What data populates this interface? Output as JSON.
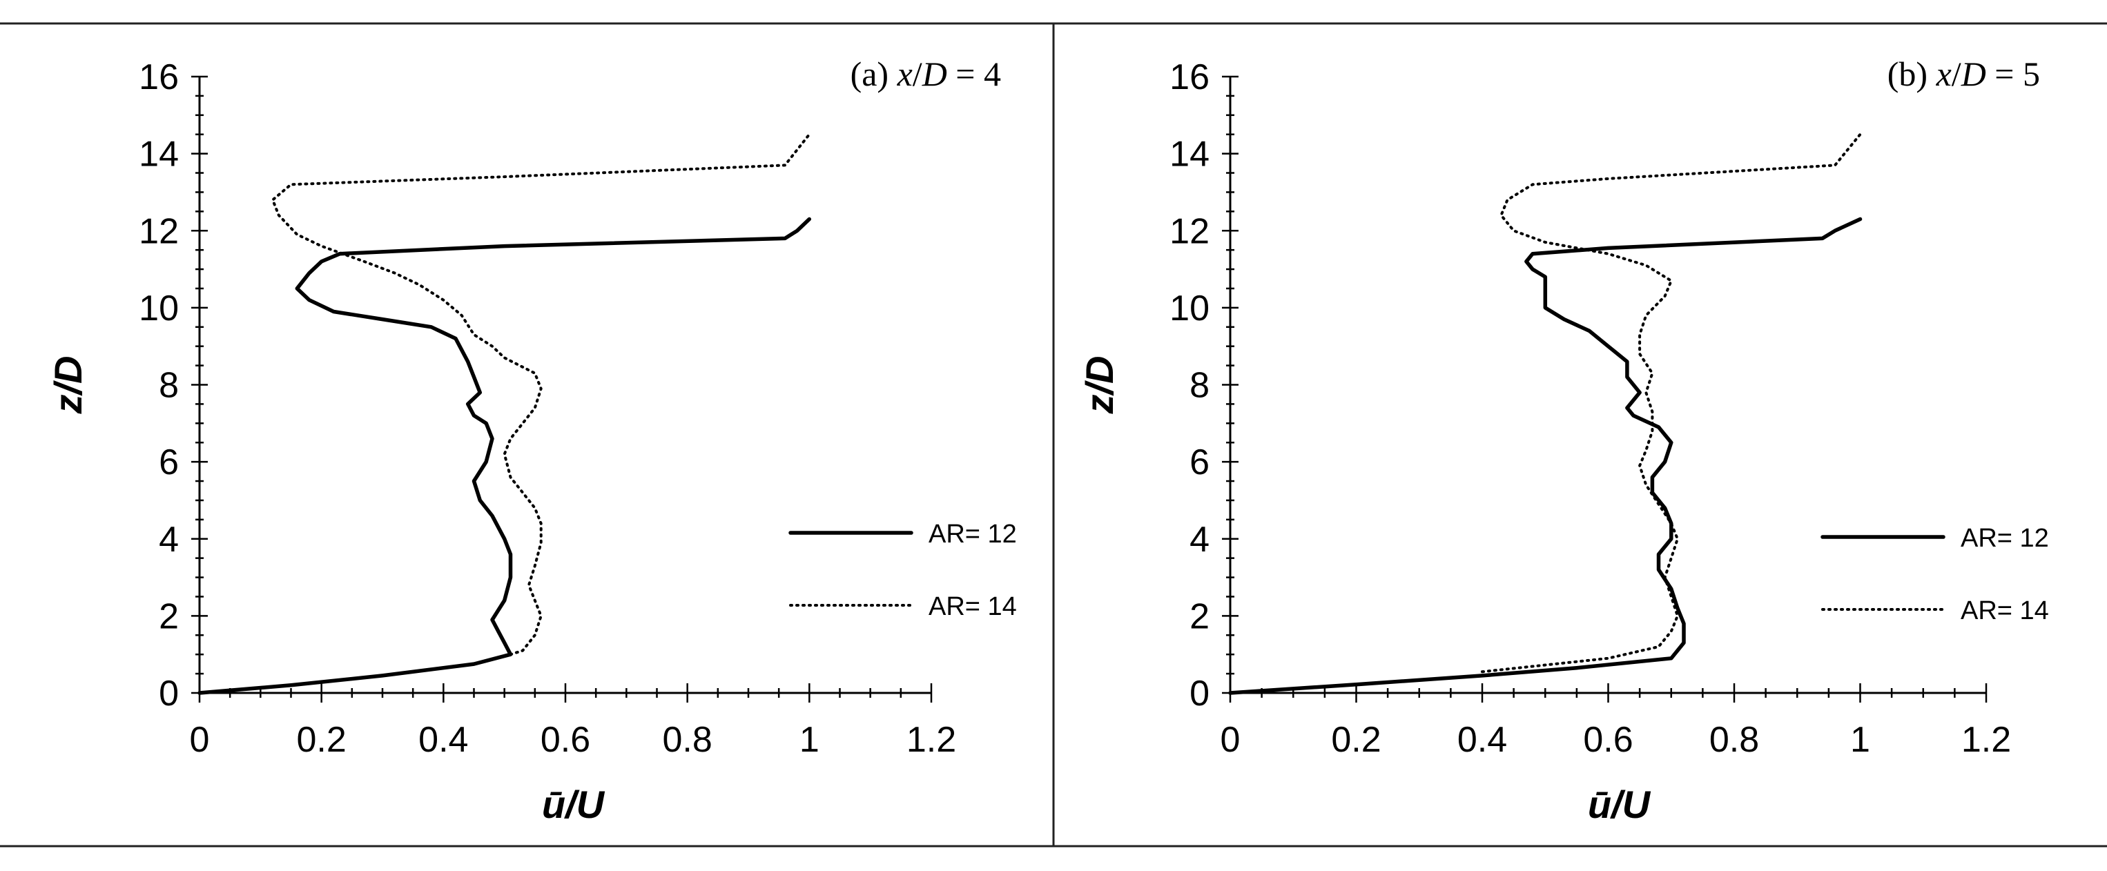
{
  "chart_data": [
    {
      "type": "line",
      "title": "(a) x/D = 4",
      "title_parts": {
        "prefix": "(a) ",
        "var1": "x",
        "sep": "/",
        "var2": "D",
        "suffix": " = 4"
      },
      "xlabel": "ū/U",
      "ylabel": "z/D",
      "xlim": [
        0,
        1.2
      ],
      "ylim": [
        0,
        16
      ],
      "xticks": [
        0,
        0.2,
        0.4,
        0.6,
        0.8,
        1,
        1.2
      ],
      "xtick_labels": [
        "0",
        "0.2",
        "0.4",
        "0.6",
        "0.8",
        "1",
        "1.2"
      ],
      "yticks": [
        0,
        2,
        4,
        6,
        8,
        10,
        12,
        14,
        16
      ],
      "ytick_labels": [
        "0",
        "2",
        "4",
        "6",
        "8",
        "10",
        "12",
        "14",
        "16"
      ],
      "grid": false,
      "legend_position": "right",
      "series": [
        {
          "name": "AR= 12",
          "style": "solid",
          "points": [
            [
              0,
              0
            ],
            [
              0.15,
              0.2
            ],
            [
              0.3,
              0.45
            ],
            [
              0.45,
              0.75
            ],
            [
              0.51,
              1.0
            ],
            [
              0.5,
              1.3
            ],
            [
              0.49,
              1.6
            ],
            [
              0.48,
              1.9
            ],
            [
              0.5,
              2.4
            ],
            [
              0.51,
              3.0
            ],
            [
              0.51,
              3.6
            ],
            [
              0.5,
              4.0
            ],
            [
              0.48,
              4.6
            ],
            [
              0.46,
              5.0
            ],
            [
              0.45,
              5.5
            ],
            [
              0.47,
              6.0
            ],
            [
              0.48,
              6.6
            ],
            [
              0.47,
              7.0
            ],
            [
              0.45,
              7.2
            ],
            [
              0.44,
              7.5
            ],
            [
              0.46,
              7.8
            ],
            [
              0.45,
              8.2
            ],
            [
              0.44,
              8.6
            ],
            [
              0.42,
              9.2
            ],
            [
              0.38,
              9.5
            ],
            [
              0.3,
              9.7
            ],
            [
              0.22,
              9.9
            ],
            [
              0.18,
              10.2
            ],
            [
              0.16,
              10.5
            ],
            [
              0.18,
              10.9
            ],
            [
              0.2,
              11.2
            ],
            [
              0.23,
              11.4
            ],
            [
              0.5,
              11.6
            ],
            [
              0.96,
              11.8
            ],
            [
              0.98,
              12.0
            ],
            [
              1.0,
              12.3
            ]
          ]
        },
        {
          "name": "AR= 14",
          "style": "dotted",
          "points": [
            [
              0.5,
              0.95
            ],
            [
              0.53,
              1.1
            ],
            [
              0.55,
              1.5
            ],
            [
              0.56,
              2.0
            ],
            [
              0.55,
              2.4
            ],
            [
              0.54,
              2.8
            ],
            [
              0.55,
              3.3
            ],
            [
              0.56,
              3.9
            ],
            [
              0.56,
              4.4
            ],
            [
              0.55,
              4.8
            ],
            [
              0.53,
              5.2
            ],
            [
              0.51,
              5.6
            ],
            [
              0.5,
              6.2
            ],
            [
              0.51,
              6.6
            ],
            [
              0.53,
              7.0
            ],
            [
              0.55,
              7.4
            ],
            [
              0.56,
              7.9
            ],
            [
              0.55,
              8.3
            ],
            [
              0.5,
              8.7
            ],
            [
              0.48,
              9.0
            ],
            [
              0.45,
              9.3
            ],
            [
              0.43,
              9.8
            ],
            [
              0.4,
              10.2
            ],
            [
              0.36,
              10.6
            ],
            [
              0.32,
              10.9
            ],
            [
              0.27,
              11.2
            ],
            [
              0.2,
              11.6
            ],
            [
              0.16,
              11.9
            ],
            [
              0.13,
              12.4
            ],
            [
              0.12,
              12.8
            ],
            [
              0.15,
              13.2
            ],
            [
              0.5,
              13.4
            ],
            [
              0.96,
              13.7
            ],
            [
              0.98,
              14.1
            ],
            [
              1.0,
              14.5
            ]
          ]
        }
      ]
    },
    {
      "type": "line",
      "title": "(b) x/D = 5",
      "title_parts": {
        "prefix": "(b) ",
        "var1": "x",
        "sep": "/",
        "var2": "D",
        "suffix": " = 5"
      },
      "xlabel": "ū/U",
      "ylabel": "z/D",
      "xlim": [
        0,
        1.2
      ],
      "ylim": [
        0,
        16
      ],
      "xticks": [
        0,
        0.2,
        0.4,
        0.6,
        0.8,
        1,
        1.2
      ],
      "xtick_labels": [
        "0",
        "0.2",
        "0.4",
        "0.6",
        "0.8",
        "1",
        "1.2"
      ],
      "yticks": [
        0,
        2,
        4,
        6,
        8,
        10,
        12,
        14,
        16
      ],
      "ytick_labels": [
        "0",
        "2",
        "4",
        "6",
        "8",
        "10",
        "12",
        "14",
        "16"
      ],
      "grid": false,
      "legend_position": "right",
      "series": [
        {
          "name": "AR= 12",
          "style": "solid",
          "points": [
            [
              0,
              0
            ],
            [
              0.2,
              0.22
            ],
            [
              0.4,
              0.45
            ],
            [
              0.55,
              0.65
            ],
            [
              0.7,
              0.9
            ],
            [
              0.72,
              1.3
            ],
            [
              0.72,
              1.8
            ],
            [
              0.71,
              2.2
            ],
            [
              0.7,
              2.7
            ],
            [
              0.68,
              3.2
            ],
            [
              0.68,
              3.6
            ],
            [
              0.7,
              4.0
            ],
            [
              0.7,
              4.4
            ],
            [
              0.69,
              4.8
            ],
            [
              0.67,
              5.2
            ],
            [
              0.67,
              5.6
            ],
            [
              0.69,
              6.0
            ],
            [
              0.7,
              6.5
            ],
            [
              0.68,
              6.9
            ],
            [
              0.64,
              7.2
            ],
            [
              0.63,
              7.4
            ],
            [
              0.65,
              7.8
            ],
            [
              0.63,
              8.2
            ],
            [
              0.63,
              8.6
            ],
            [
              0.6,
              9.0
            ],
            [
              0.57,
              9.4
            ],
            [
              0.53,
              9.7
            ],
            [
              0.5,
              10.0
            ],
            [
              0.5,
              10.4
            ],
            [
              0.5,
              10.8
            ],
            [
              0.48,
              11.0
            ],
            [
              0.47,
              11.2
            ],
            [
              0.48,
              11.4
            ],
            [
              0.6,
              11.55
            ],
            [
              0.94,
              11.8
            ],
            [
              0.96,
              12.0
            ],
            [
              1.0,
              12.3
            ]
          ]
        },
        {
          "name": "AR= 14",
          "style": "dotted",
          "points": [
            [
              0.4,
              0.55
            ],
            [
              0.6,
              0.9
            ],
            [
              0.68,
              1.2
            ],
            [
              0.7,
              1.6
            ],
            [
              0.71,
              2.0
            ],
            [
              0.7,
              2.5
            ],
            [
              0.69,
              3.0
            ],
            [
              0.7,
              3.5
            ],
            [
              0.71,
              4.0
            ],
            [
              0.7,
              4.4
            ],
            [
              0.68,
              4.9
            ],
            [
              0.66,
              5.4
            ],
            [
              0.65,
              5.9
            ],
            [
              0.66,
              6.3
            ],
            [
              0.67,
              6.8
            ],
            [
              0.67,
              7.3
            ],
            [
              0.66,
              7.8
            ],
            [
              0.67,
              8.3
            ],
            [
              0.65,
              8.8
            ],
            [
              0.65,
              9.3
            ],
            [
              0.66,
              9.8
            ],
            [
              0.69,
              10.3
            ],
            [
              0.7,
              10.7
            ],
            [
              0.66,
              11.1
            ],
            [
              0.6,
              11.4
            ],
            [
              0.5,
              11.7
            ],
            [
              0.45,
              12.0
            ],
            [
              0.43,
              12.4
            ],
            [
              0.44,
              12.8
            ],
            [
              0.48,
              13.2
            ],
            [
              0.6,
              13.35
            ],
            [
              0.96,
              13.7
            ],
            [
              0.98,
              14.1
            ],
            [
              1.0,
              14.5
            ]
          ]
        }
      ]
    }
  ]
}
